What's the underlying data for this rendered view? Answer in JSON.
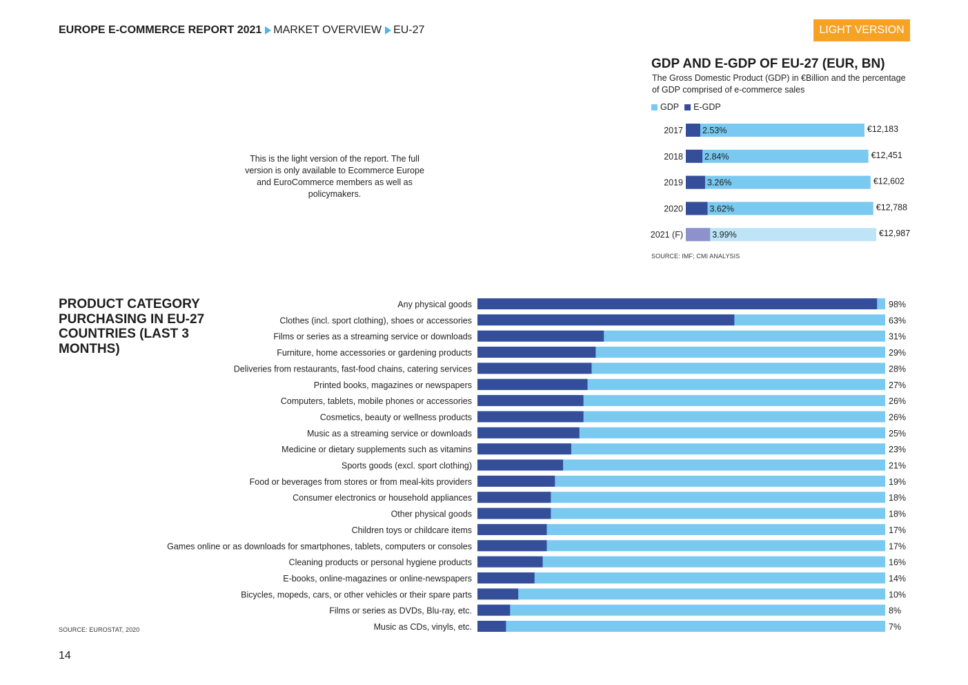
{
  "header": {
    "breadcrumb": [
      "EUROPE E-COMMERCE REPORT 2021",
      "MARKET OVERVIEW",
      "EU-27"
    ],
    "badge": "LIGHT VERSION"
  },
  "note": "This is the light version of the report. The full version is only available to Ecommerce Europe and EuroCommerce members as well as policymakers.",
  "page_number": "14",
  "colors": {
    "gdp": "#7ac9f0",
    "egdp": "#344e9a",
    "forecast_gdp": "#bde4f7",
    "forecast_egdp": "#8d92cc",
    "badge": "#f6a225",
    "accent": "#4db5e8"
  },
  "chart_data": [
    {
      "type": "bar",
      "orientation": "horizontal",
      "title": "GDP AND E-GDP OF EU-27 (EUR, BN)",
      "subtitle": "The Gross Domestic Product (GDP) in €Billion and the percentage of GDP comprised of e-commerce sales",
      "legend": [
        "GDP",
        "E-GDP"
      ],
      "legend_position": "top-left",
      "categories": [
        "2017",
        "2018",
        "2019",
        "2020",
        "2021 (F)"
      ],
      "gdp_values": [
        12183,
        12451,
        12602,
        12788,
        12987
      ],
      "gdp_labels": [
        "€12,183",
        "€12,451",
        "€12,602",
        "€12,788",
        "€12,987"
      ],
      "egdp_percent": [
        2.53,
        2.84,
        3.26,
        3.62,
        3.99
      ],
      "egdp_labels": [
        "2.53%",
        "2.84%",
        "3.26%",
        "3.62%",
        "3.99%"
      ],
      "source": "SOURCE: IMF; CMI ANALYSIS"
    },
    {
      "type": "bar",
      "orientation": "horizontal",
      "stacked_to": 100,
      "title": "PRODUCT CATEGORY PURCHASING IN EU-27 COUNTRIES (LAST 3 MONTHS)",
      "xlim": [
        0,
        100
      ],
      "categories": [
        "Any physical goods",
        "Clothes (incl. sport clothing), shoes or accessories",
        "Films or series as a streaming service or downloads",
        "Furniture, home accessories or gardening products",
        "Deliveries from restaurants, fast-food chains, catering services",
        "Printed books, magazines or newspapers",
        "Computers, tablets, mobile phones or accessories",
        "Cosmetics, beauty or wellness products",
        "Music as a streaming service or downloads",
        "Medicine or dietary supplements such as vitamins",
        "Sports goods (excl. sport clothing)",
        "Food or beverages from stores or from meal-kits providers",
        "Consumer electronics or household appliances",
        "Other physical goods",
        "Children toys or childcare items",
        "Games online or as downloads for smartphones, tablets, computers or consoles",
        "Cleaning products or personal hygiene products",
        "E-books, online-magazines or online-newspapers",
        "Bicycles, mopeds, cars, or other vehicles or their spare parts",
        "Films or series as DVDs, Blu-ray, etc.",
        "Music as CDs, vinyls, etc."
      ],
      "values": [
        98,
        63,
        31,
        29,
        28,
        27,
        26,
        26,
        25,
        23,
        21,
        19,
        18,
        18,
        17,
        17,
        16,
        14,
        10,
        8,
        7
      ],
      "value_labels": [
        "98%",
        "63%",
        "31%",
        "29%",
        "28%",
        "27%",
        "26%",
        "26%",
        "25%",
        "23%",
        "21%",
        "19%",
        "18%",
        "18%",
        "17%",
        "17%",
        "16%",
        "14%",
        "10%",
        "8%",
        "7%"
      ],
      "source": "SOURCE: EUROSTAT, 2020"
    }
  ]
}
